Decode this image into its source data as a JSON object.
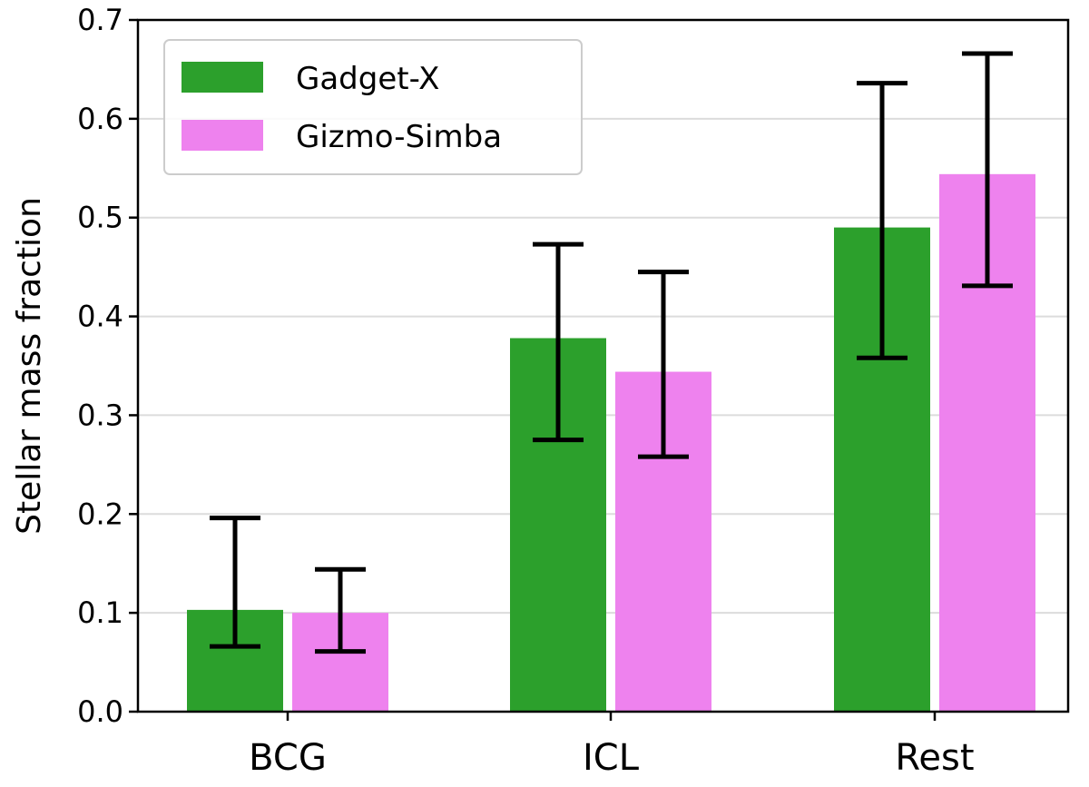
{
  "chart_data": {
    "type": "bar",
    "title": "",
    "xlabel": "",
    "ylabel": "Stellar mass fraction",
    "categories": [
      "BCG",
      "ICL",
      "Rest"
    ],
    "ylim": [
      0.0,
      0.7
    ],
    "yticks": [
      "0.0",
      "0.1",
      "0.2",
      "0.3",
      "0.4",
      "0.5",
      "0.6",
      "0.7"
    ],
    "grid": "horizontal",
    "legend_position": "top-left",
    "series": [
      {
        "name": "Gadget-X",
        "color": "#2ca02c",
        "values": [
          0.103,
          0.378,
          0.49
        ],
        "err_low": [
          0.066,
          0.275,
          0.358
        ],
        "err_high": [
          0.196,
          0.473,
          0.636
        ]
      },
      {
        "name": "Gizmo-Simba",
        "color": "#ee82ee",
        "values": [
          0.1,
          0.344,
          0.544
        ],
        "err_low": [
          0.061,
          0.258,
          0.431
        ],
        "err_high": [
          0.144,
          0.445,
          0.666
        ]
      }
    ]
  }
}
